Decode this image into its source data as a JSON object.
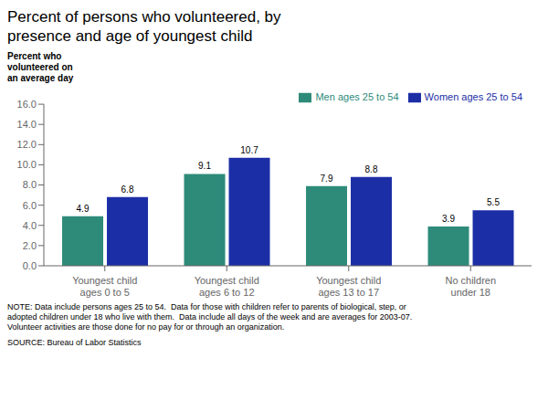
{
  "chart_data": {
    "type": "bar",
    "title": "Percent of persons who volunteered, by\npresence and age of youngest child",
    "y_label": "Percent who\nvolunteered on\nan average day",
    "categories": [
      "Youngest child\nages 0 to 5",
      "Youngest child\nages 6 to 12",
      "Youngest child\nages 13 to 17",
      "No children\nunder 18"
    ],
    "series": [
      {
        "name": "Men ages 25 to 54",
        "color": "#2E8B7A",
        "values": [
          4.9,
          9.1,
          7.9,
          3.9
        ]
      },
      {
        "name": "Women ages 25 to 54",
        "color": "#1C2EA6",
        "values": [
          6.8,
          10.7,
          8.8,
          5.5
        ]
      }
    ],
    "ylim": [
      0,
      16.0
    ],
    "yticks": [
      {
        "value": 0,
        "label": "0.0"
      },
      {
        "value": 2,
        "label": "2.0"
      },
      {
        "value": 4,
        "label": "4.0"
      },
      {
        "value": 6,
        "label": "6.0"
      },
      {
        "value": 8,
        "label": "8.0"
      },
      {
        "value": 10,
        "label": "10.0"
      },
      {
        "value": 12,
        "label": "12.0"
      },
      {
        "value": 14,
        "label": "14.0"
      },
      {
        "value": 16,
        "label": "16.0"
      }
    ],
    "legend": "upper right",
    "data_labels": true,
    "grid": false,
    "annotations": [
      "NOTE: Data include persons ages 25 to 54.  Data for those with children refer to parents of biological, step, or\nadopted children under 18 who live with them.  Data include all days of the week and are averages for 2003-07.\nVolunteer activities are those done for no pay for or through an organization.",
      "SOURCE: Bureau of Labor Statistics"
    ]
  }
}
